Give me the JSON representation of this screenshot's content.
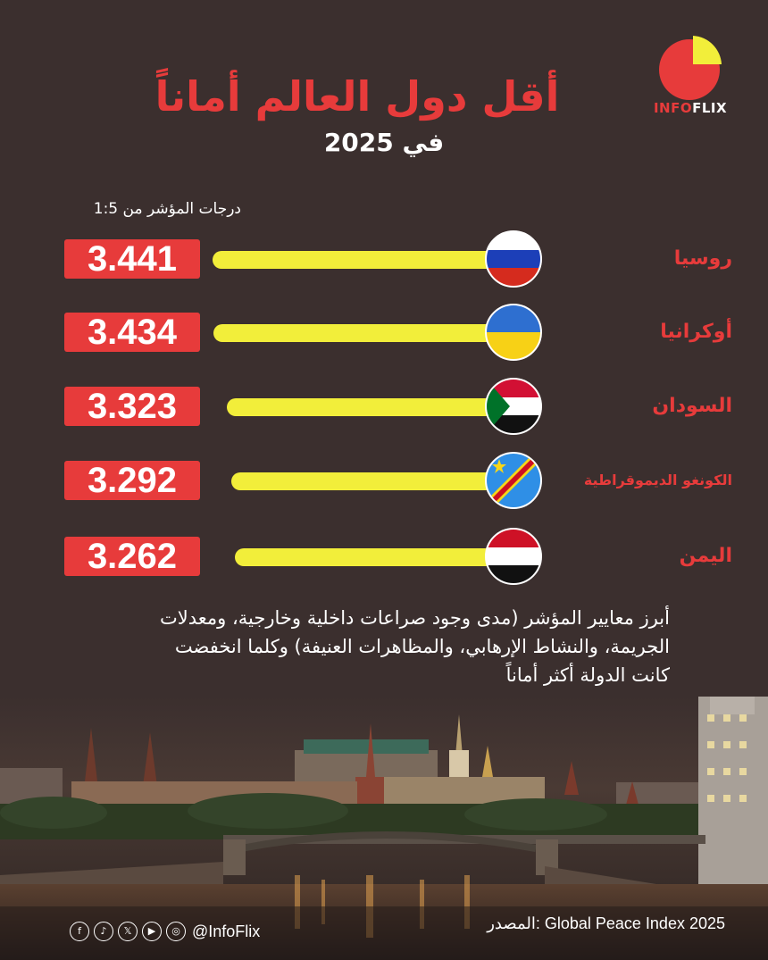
{
  "title": "أقل دول العالم أماناً",
  "subtitle": "في 2025",
  "logo": {
    "brand_left": "INFO",
    "brand_right": "FLIX",
    "colors": {
      "red": "#e73b3b",
      "yellow": "#f2ee3a"
    }
  },
  "chart_data": {
    "type": "bar",
    "orientation": "horizontal",
    "xlabel": "درجات المؤشر من 1:5",
    "xlim": [
      1,
      5
    ],
    "categories": [
      "روسيا",
      "أوكرانيا",
      "السودان",
      "الكونغو الديموقراطية",
      "اليمن"
    ],
    "values": [
      3.441,
      3.434,
      3.323,
      3.292,
      3.262
    ],
    "value_labels": [
      "3.441",
      "3.434",
      "3.323",
      "3.292",
      "3.262"
    ],
    "bar_color": "#f2ee3a",
    "label_color": "#e73b3b",
    "flags": [
      "russia-flag",
      "ukraine-flag",
      "sudan-flag",
      "dr-congo-flag",
      "yemen-flag"
    ]
  },
  "note": "أبرز معايير المؤشر (مدى وجود صراعات داخلية وخارجية، ومعدلات الجريمة، والنشاط الإرهابي، والمظاهرات العنيفة) وكلما انخفضت كانت الدولة أكثر أماناً",
  "source": "المصدر: Global Peace Index 2025",
  "social": {
    "handle": "@InfoFlix",
    "icons": [
      "facebook-icon",
      "tiktok-icon",
      "x-icon",
      "youtube-icon"
    ]
  }
}
